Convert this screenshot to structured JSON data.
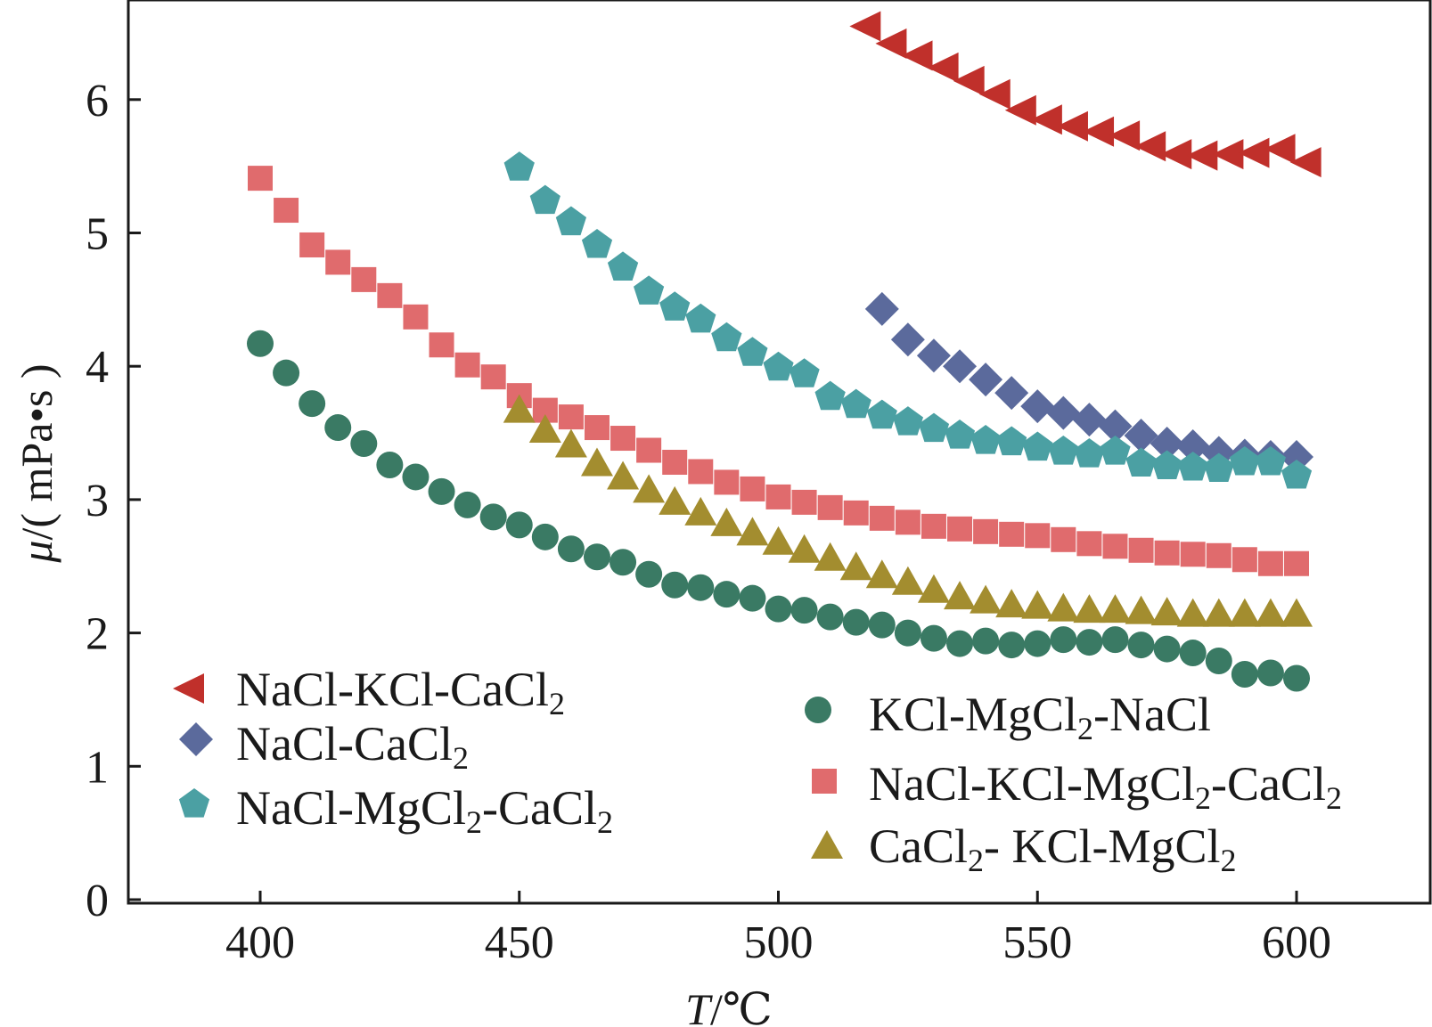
{
  "chart_data": {
    "type": "scatter",
    "title": "",
    "xlabel": {
      "italic": "T",
      "rest": "/℃"
    },
    "ylabel": {
      "italic": "μ",
      "rest": "/( mPa•s )"
    },
    "xlim": [
      375,
      625
    ],
    "ylim": [
      0,
      6.8
    ],
    "x_ticks": [
      400,
      450,
      500,
      550,
      600
    ],
    "x_tick_labels": [
      "400",
      "450",
      "500",
      "550",
      "600"
    ],
    "y_ticks": [
      0,
      1,
      2,
      3,
      4,
      5,
      6
    ],
    "y_tick_labels": [
      "0",
      "1",
      "2",
      "3",
      "4",
      "5",
      "6"
    ],
    "grid": false,
    "legend_placement": "bottom",
    "series": [
      {
        "legend": [
          {
            "t": "NaCl-KCl-CaCl"
          },
          {
            "t": "2",
            "sub": true
          }
        ],
        "marker": "triangle-left",
        "color": "#c0302b",
        "x": [
          517,
          522,
          527,
          532,
          537,
          542,
          547,
          552,
          557,
          562,
          567,
          572,
          577,
          582,
          587,
          592,
          597,
          602
        ],
        "y": [
          6.55,
          6.42,
          6.33,
          6.24,
          6.14,
          6.04,
          5.92,
          5.85,
          5.8,
          5.76,
          5.73,
          5.65,
          5.59,
          5.58,
          5.59,
          5.6,
          5.63,
          5.53
        ]
      },
      {
        "legend": [
          {
            "t": "NaCl-CaCl"
          },
          {
            "t": "2",
            "sub": true
          }
        ],
        "marker": "diamond",
        "color": "#5b6a9c",
        "x": [
          520,
          525,
          530,
          535,
          540,
          545,
          550,
          555,
          560,
          565,
          570,
          575,
          580,
          585,
          590,
          595,
          600
        ],
        "y": [
          4.43,
          4.2,
          4.08,
          4.0,
          3.9,
          3.8,
          3.7,
          3.65,
          3.6,
          3.55,
          3.48,
          3.42,
          3.4,
          3.35,
          3.33,
          3.32,
          3.32
        ]
      },
      {
        "legend": [
          {
            "t": "NaCl-MgCl"
          },
          {
            "t": "2",
            "sub": true
          },
          {
            "t": "-CaCl"
          },
          {
            "t": "2",
            "sub": true
          }
        ],
        "marker": "pentagon",
        "color": "#4ba0a3",
        "x": [
          450,
          455,
          460,
          465,
          470,
          475,
          480,
          485,
          490,
          495,
          500,
          505,
          510,
          515,
          520,
          525,
          530,
          535,
          540,
          545,
          550,
          555,
          560,
          565,
          570,
          575,
          580,
          585,
          590,
          595,
          600
        ],
        "y": [
          5.49,
          5.24,
          5.08,
          4.91,
          4.74,
          4.56,
          4.44,
          4.35,
          4.21,
          4.1,
          3.99,
          3.94,
          3.77,
          3.71,
          3.63,
          3.58,
          3.53,
          3.48,
          3.44,
          3.43,
          3.39,
          3.36,
          3.34,
          3.36,
          3.27,
          3.25,
          3.24,
          3.23,
          3.28,
          3.28,
          3.18
        ]
      },
      {
        "legend": [
          {
            "t": "KCl-MgCl"
          },
          {
            "t": "2",
            "sub": true
          },
          {
            "t": "-NaCl"
          }
        ],
        "marker": "circle",
        "color": "#3a7a64",
        "x": [
          400,
          405,
          410,
          415,
          420,
          425,
          430,
          435,
          440,
          445,
          450,
          455,
          460,
          465,
          470,
          475,
          480,
          485,
          490,
          495,
          500,
          505,
          510,
          515,
          520,
          525,
          530,
          535,
          540,
          545,
          550,
          555,
          560,
          565,
          570,
          575,
          580,
          585,
          590,
          595,
          600
        ],
        "y": [
          4.17,
          3.95,
          3.72,
          3.54,
          3.42,
          3.26,
          3.17,
          3.06,
          2.96,
          2.87,
          2.81,
          2.72,
          2.63,
          2.57,
          2.53,
          2.44,
          2.36,
          2.34,
          2.29,
          2.26,
          2.18,
          2.17,
          2.12,
          2.08,
          2.06,
          2.0,
          1.96,
          1.92,
          1.94,
          1.91,
          1.92,
          1.95,
          1.93,
          1.95,
          1.91,
          1.88,
          1.85,
          1.79,
          1.69,
          1.7,
          1.66
        ]
      },
      {
        "legend": [
          {
            "t": "NaCl-KCl-MgCl"
          },
          {
            "t": "2",
            "sub": true
          },
          {
            "t": "-CaCl"
          },
          {
            "t": "2",
            "sub": true
          }
        ],
        "marker": "square",
        "color": "#e06b6d",
        "x": [
          400,
          405,
          410,
          415,
          420,
          425,
          430,
          435,
          440,
          445,
          450,
          455,
          460,
          465,
          470,
          475,
          480,
          485,
          490,
          495,
          500,
          505,
          510,
          515,
          520,
          525,
          530,
          535,
          540,
          545,
          550,
          555,
          560,
          565,
          570,
          575,
          580,
          585,
          590,
          595,
          600
        ],
        "y": [
          5.41,
          5.17,
          4.91,
          4.78,
          4.65,
          4.53,
          4.37,
          4.16,
          4.01,
          3.92,
          3.78,
          3.67,
          3.62,
          3.54,
          3.46,
          3.37,
          3.28,
          3.21,
          3.13,
          3.08,
          3.02,
          2.98,
          2.94,
          2.9,
          2.86,
          2.83,
          2.8,
          2.78,
          2.76,
          2.74,
          2.73,
          2.7,
          2.67,
          2.65,
          2.62,
          2.6,
          2.59,
          2.58,
          2.55,
          2.52,
          2.52
        ]
      },
      {
        "legend": [
          {
            "t": "CaCl"
          },
          {
            "t": "2",
            "sub": true
          },
          {
            "t": "- KCl-MgCl"
          },
          {
            "t": "2",
            "sub": true
          }
        ],
        "marker": "triangle-up",
        "color": "#a38d2f",
        "x": [
          450,
          455,
          460,
          465,
          470,
          475,
          480,
          485,
          490,
          495,
          500,
          505,
          510,
          515,
          520,
          525,
          530,
          535,
          540,
          545,
          550,
          555,
          560,
          565,
          570,
          575,
          580,
          585,
          590,
          595,
          600
        ],
        "y": [
          3.67,
          3.52,
          3.41,
          3.27,
          3.17,
          3.07,
          2.98,
          2.9,
          2.82,
          2.75,
          2.68,
          2.62,
          2.56,
          2.49,
          2.43,
          2.38,
          2.32,
          2.27,
          2.24,
          2.21,
          2.2,
          2.18,
          2.17,
          2.17,
          2.16,
          2.15,
          2.14,
          2.14,
          2.14,
          2.14,
          2.14
        ]
      }
    ]
  }
}
